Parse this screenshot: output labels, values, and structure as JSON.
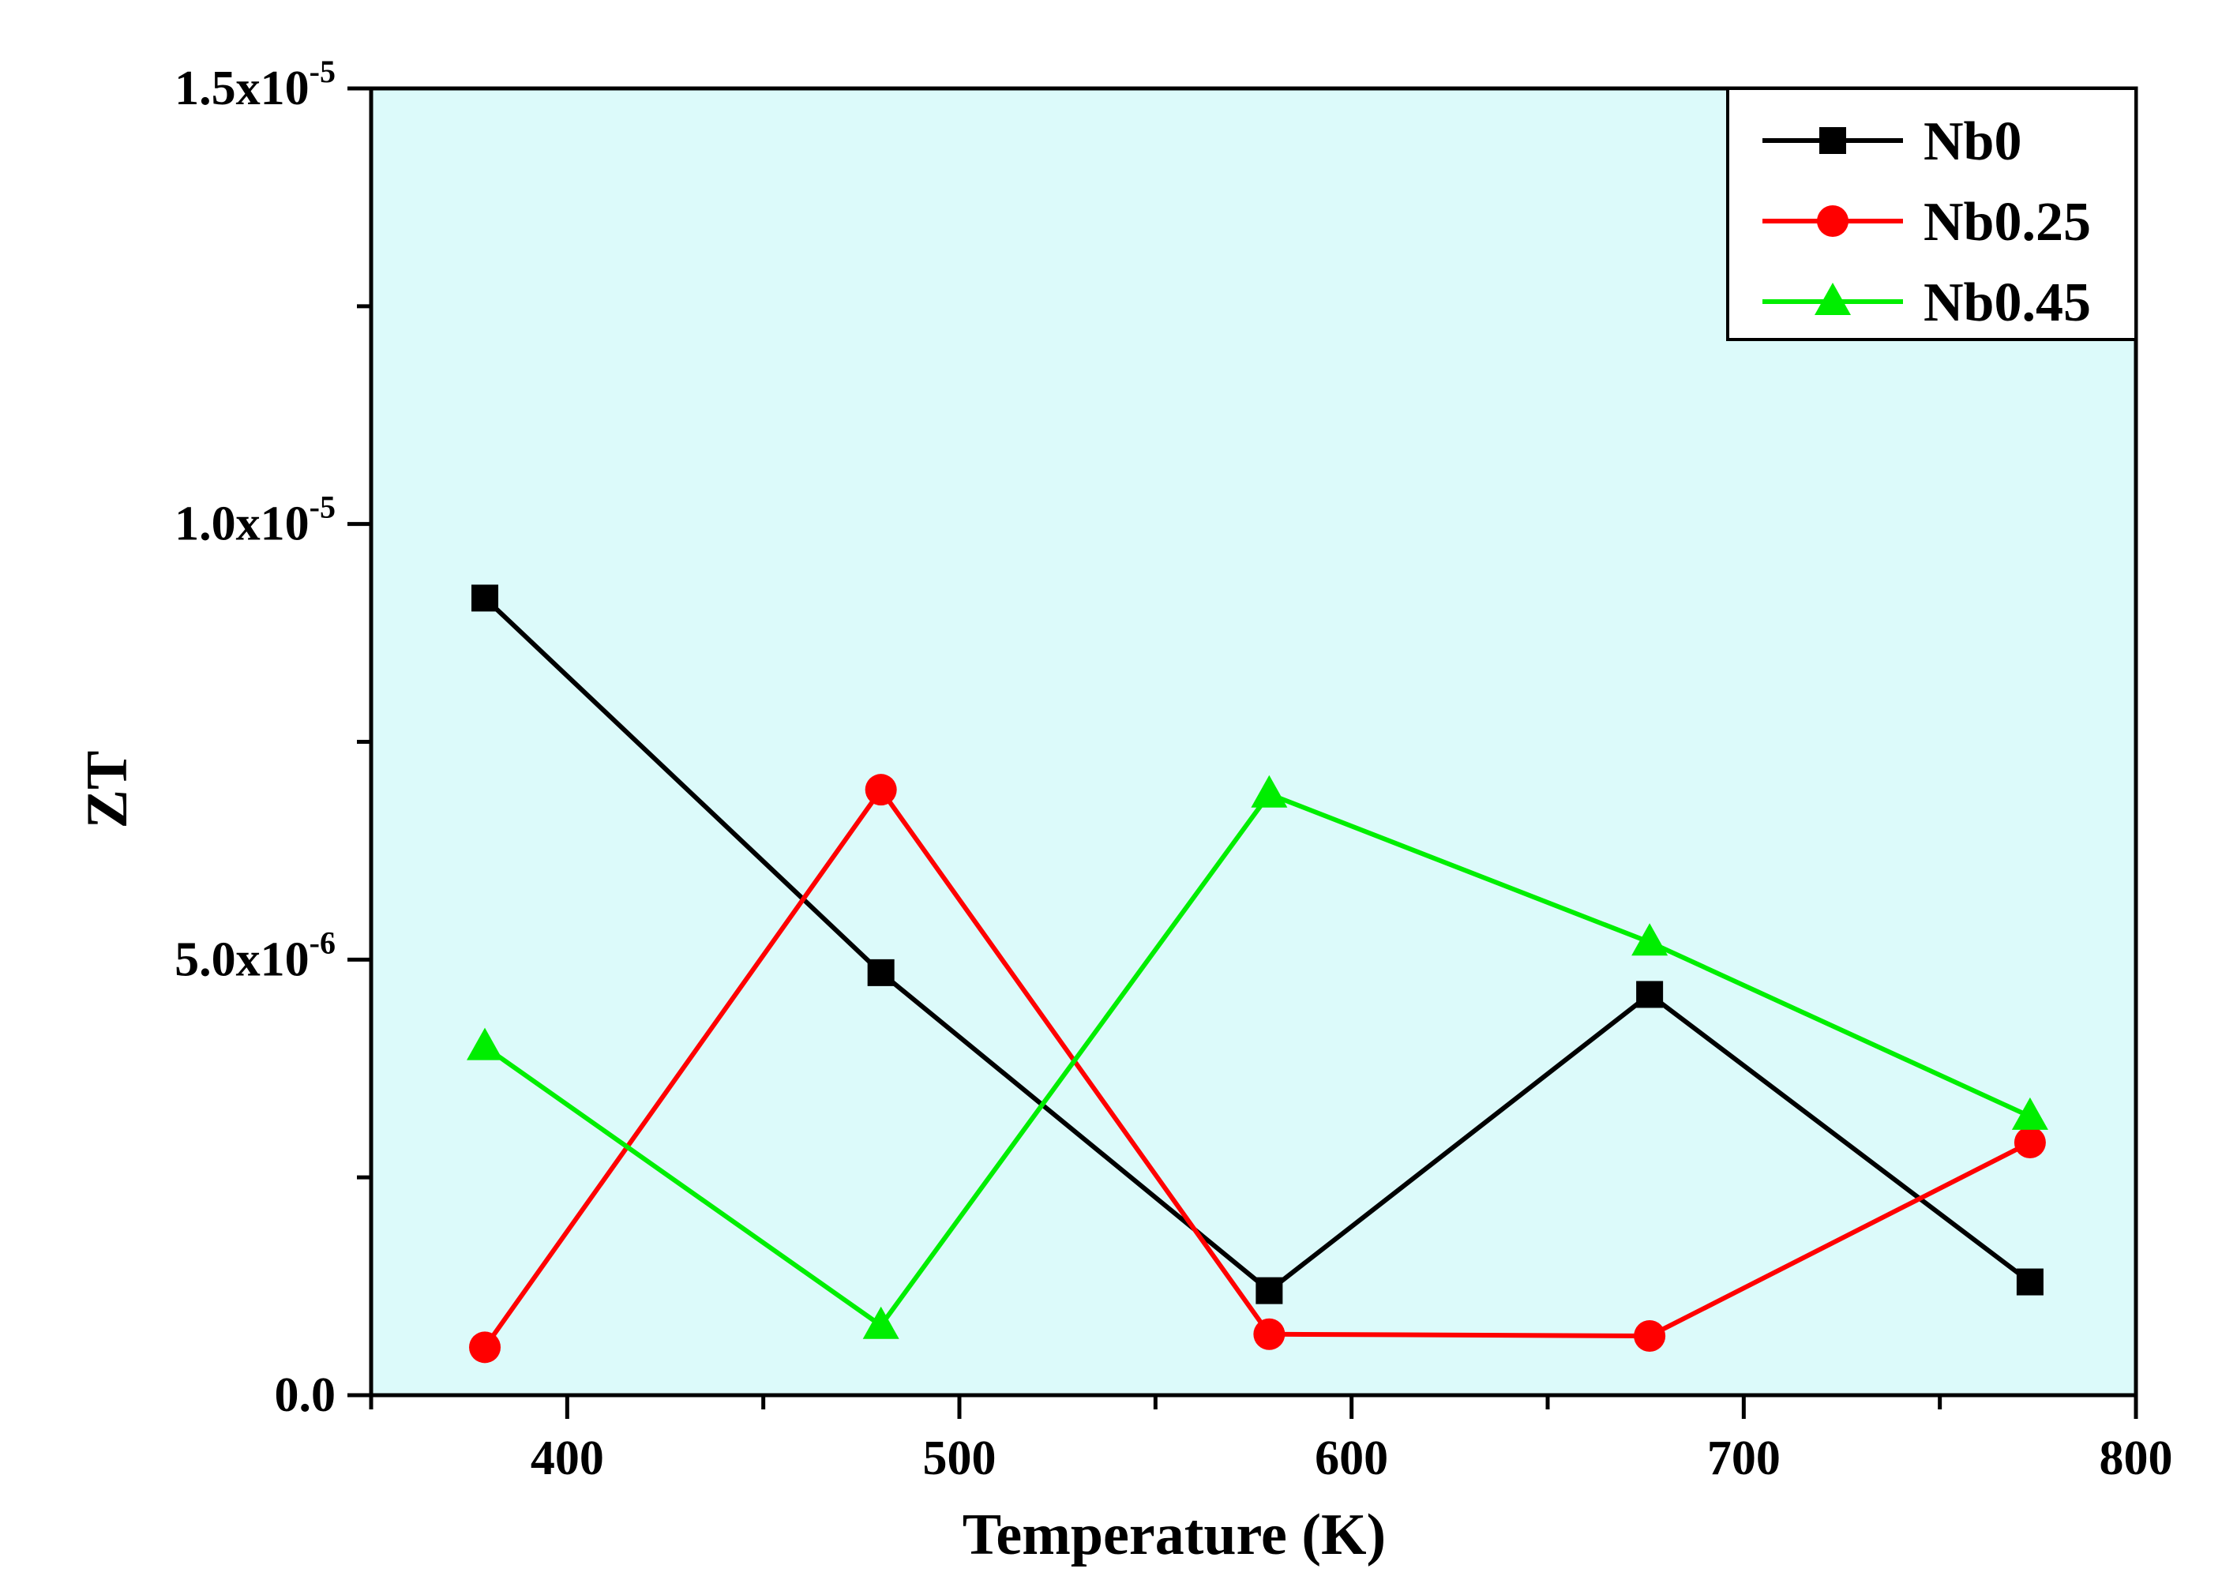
{
  "chart_data": {
    "type": "line",
    "title": "",
    "xlabel": "Temperature (K)",
    "ylabel": "ZT",
    "xlim": [
      350,
      800
    ],
    "ylim": [
      0,
      1.5e-05
    ],
    "grid": false,
    "legend_position": "top-right",
    "plot_background": "#dcfafa",
    "x_ticks": [
      400,
      500,
      600,
      700,
      800
    ],
    "x_tick_labels": [
      "400",
      "500",
      "600",
      "700",
      "800"
    ],
    "y_ticks": [
      0,
      5e-06,
      1e-05,
      1.5e-05
    ],
    "y_tick_labels": [
      {
        "mantissa": "0.0",
        "exponent": ""
      },
      {
        "mantissa": "5.0x10",
        "exponent": "-6"
      },
      {
        "mantissa": "1.0x10",
        "exponent": "-5"
      },
      {
        "mantissa": "1.5x10",
        "exponent": "-5"
      }
    ],
    "series": [
      {
        "name": "Nb0",
        "color": "#000000",
        "marker": "square",
        "x": [
          379,
          480,
          579,
          676,
          773
        ],
        "y": [
          9.15e-06,
          4.85e-06,
          1.2e-06,
          4.6e-06,
          1.3e-06
        ]
      },
      {
        "name": "Nb0.25",
        "color": "#ff0000",
        "marker": "circle",
        "x": [
          379,
          480,
          579,
          676,
          773
        ],
        "y": [
          5.5e-07,
          6.95e-06,
          7e-07,
          6.8e-07,
          2.9e-06
        ]
      },
      {
        "name": "Nb0.45",
        "color": "#00ee00",
        "marker": "triangle",
        "x": [
          379,
          480,
          579,
          676,
          773
        ],
        "y": [
          4e-06,
          8e-07,
          6.9e-06,
          5.2e-06,
          3.2e-06
        ]
      }
    ]
  }
}
